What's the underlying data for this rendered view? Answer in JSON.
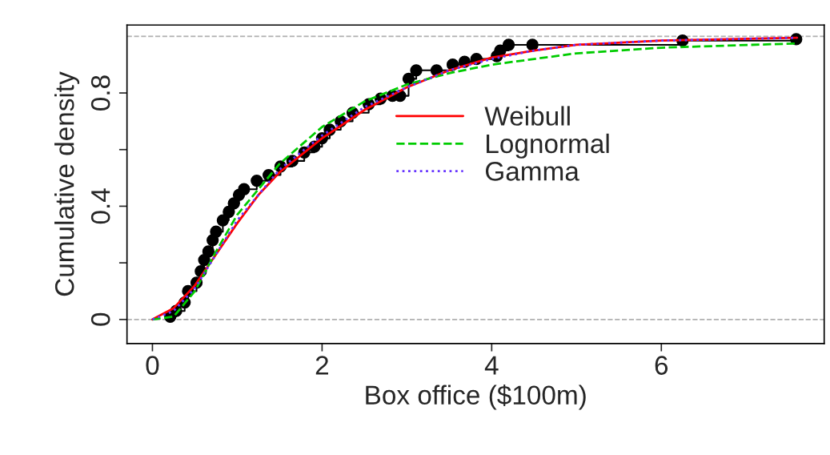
{
  "chart_data": {
    "type": "line",
    "xlabel": "Box office ($100m)",
    "ylabel": "Cumulative density",
    "xlim": [
      -0.3,
      7.92
    ],
    "ylim": [
      -0.085,
      1.04
    ],
    "xticks": [
      0,
      2,
      4,
      6
    ],
    "yticks": [
      0,
      {
        "value": 0.2,
        "label": null
      },
      0.4,
      {
        "value": 0.6,
        "label": null
      },
      0.8
    ],
    "grid": false,
    "legend": "center",
    "ref_lines": [
      {
        "axis": "y",
        "value": 0,
        "color": "#b0b0b0",
        "line_style": "dashed"
      },
      {
        "axis": "y",
        "value": 1,
        "color": "#b0b0b0",
        "line_style": "dashed"
      }
    ],
    "series": [
      {
        "type": "step",
        "color": "#000000",
        "marker": "circle",
        "line_style": "solid",
        "x": [
          0.21,
          0.28,
          0.38,
          0.42,
          0.52,
          0.57,
          0.61,
          0.66,
          0.71,
          0.75,
          0.83,
          0.9,
          0.96,
          1.02,
          1.08,
          1.23,
          1.37,
          1.51,
          1.65,
          1.79,
          1.91,
          2.0,
          2.09,
          2.22,
          2.36,
          2.55,
          2.69,
          2.83,
          2.92,
          3.02,
          3.11,
          3.35,
          3.54,
          3.68,
          3.82,
          4.06,
          4.1,
          4.2,
          4.48,
          6.25,
          7.59
        ],
        "values": [
          0.01,
          0.03,
          0.06,
          0.1,
          0.13,
          0.17,
          0.21,
          0.24,
          0.28,
          0.31,
          0.35,
          0.38,
          0.41,
          0.44,
          0.46,
          0.49,
          0.51,
          0.54,
          0.56,
          0.59,
          0.61,
          0.64,
          0.67,
          0.7,
          0.73,
          0.76,
          0.78,
          0.79,
          0.79,
          0.85,
          0.88,
          0.88,
          0.9,
          0.91,
          0.92,
          0.93,
          0.95,
          0.97,
          0.97,
          0.985,
          0.99
        ]
      },
      {
        "name": "Weibull",
        "color": "#ff0000",
        "line_style": "solid",
        "marker": "none",
        "x": [
          0,
          0.25,
          0.5,
          0.75,
          1.0,
          1.25,
          1.5,
          2.0,
          2.5,
          3.0,
          3.5,
          4.0,
          4.5,
          5.0,
          6.0,
          7.6
        ],
        "values": [
          0.0,
          0.04,
          0.12,
          0.23,
          0.34,
          0.44,
          0.52,
          0.64,
          0.74,
          0.82,
          0.88,
          0.925,
          0.95,
          0.97,
          0.985,
          0.995
        ]
      },
      {
        "name": "Lognormal",
        "color": "#00cc00",
        "line_style": "dashed",
        "marker": "none",
        "x": [
          0,
          0.25,
          0.5,
          0.75,
          1.0,
          1.5,
          2.0,
          2.5,
          3.0,
          3.5,
          4.0,
          5.0,
          6.0,
          7.6
        ],
        "values": [
          0.0,
          0.01,
          0.1,
          0.24,
          0.37,
          0.55,
          0.68,
          0.77,
          0.83,
          0.87,
          0.9,
          0.94,
          0.96,
          0.975
        ]
      },
      {
        "name": "Gamma",
        "color": "#6633ff",
        "line_style": "dotted",
        "marker": "none",
        "x": [
          0,
          0.25,
          0.5,
          0.75,
          1.0,
          1.5,
          2.0,
          2.5,
          3.0,
          3.5,
          4.0,
          4.5,
          5.0,
          6.0,
          7.6
        ],
        "values": [
          0.0,
          0.03,
          0.11,
          0.23,
          0.35,
          0.53,
          0.65,
          0.75,
          0.82,
          0.88,
          0.92,
          0.95,
          0.97,
          0.985,
          0.995
        ]
      }
    ]
  }
}
